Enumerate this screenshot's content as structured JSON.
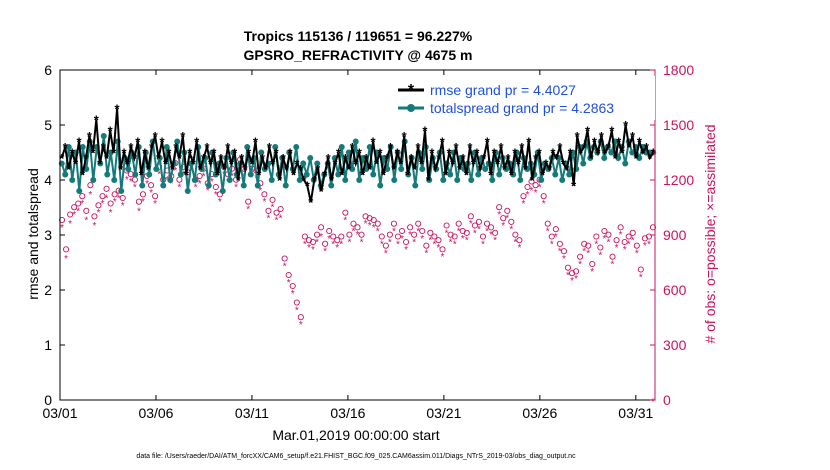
{
  "chart_data": {
    "type": "line",
    "title": [
      "Tropics 115136 / 119651 = 96.227%",
      "GPSRO_REFRACTIVITY @ 4675 m"
    ],
    "xlabel": "Mar.01,2019 00:00:00 start",
    "ylabel": "rmse and totalspread",
    "ylabel_right": "# of obs: o=possible; ×=assimilated",
    "x_ticks": [
      "03/01",
      "03/06",
      "03/11",
      "03/16",
      "03/21",
      "03/26",
      "03/31"
    ],
    "x_tick_days": [
      0,
      5,
      10,
      15,
      20,
      25,
      30
    ],
    "x_range_days": [
      0,
      31
    ],
    "ylim": [
      0,
      6
    ],
    "y_ticks": [
      "0",
      "1",
      "2",
      "3",
      "4",
      "5",
      "6"
    ],
    "ylim_right": [
      0,
      1800
    ],
    "y_ticks_right": [
      "0",
      "300",
      "600",
      "900",
      "1200",
      "1500",
      "1800"
    ],
    "footer": "data file: /Users/raeder/DAI/ATM_forcXX/CAM6_setup/f.e21.FHIST_BGC.f09_025.CAM6assim.011/Diags_NTrS_2019-03/obs_diag_output.nc",
    "series": [
      {
        "name": "rmse grand pr = 4.4027",
        "color": "#000000",
        "marker": "asterisk",
        "values": [
          4.4,
          4.6,
          4.2,
          4.5,
          4.3,
          4.7,
          4.1,
          4.4,
          4.8,
          4.5,
          5.1,
          4.3,
          4.6,
          4.4,
          4.9,
          4.5,
          5.3,
          4.2,
          4.5,
          4.3,
          4.6,
          4.4,
          4.7,
          4.1,
          4.5,
          4.2,
          4.6,
          4.8,
          4.4,
          4.7,
          4.3,
          4.5,
          4.2,
          4.6,
          4.4,
          4.8,
          4.1,
          4.5,
          4.3,
          4.7,
          4.2,
          4.4,
          4.6,
          4.3,
          4.5,
          4.1,
          4.4,
          4.2,
          4.6,
          4.3,
          4.5,
          4.0,
          4.4,
          4.2,
          4.5,
          4.3,
          4.7,
          4.1,
          4.4,
          4.2,
          4.6,
          4.3,
          4.5,
          4.0,
          4.4,
          4.2,
          4.5,
          4.1,
          4.3,
          4.2,
          4.0,
          3.9,
          3.6,
          4.0,
          4.2,
          3.8,
          4.1,
          4.4,
          4.0,
          4.3,
          4.5,
          4.1,
          4.4,
          4.2,
          4.6,
          4.3,
          4.5,
          4.1,
          4.4,
          4.2,
          4.7,
          4.3,
          4.5,
          4.1,
          4.4,
          4.6,
          4.2,
          4.5,
          4.3,
          4.8,
          4.1,
          4.4,
          4.2,
          4.6,
          4.3,
          4.9,
          4.0,
          4.5,
          4.2,
          4.4,
          4.7,
          4.1,
          4.5,
          4.3,
          4.6,
          4.2,
          4.4,
          4.1,
          4.6,
          4.3,
          4.5,
          4.2,
          4.4,
          4.7,
          4.1,
          4.5,
          4.3,
          4.6,
          4.2,
          4.4,
          4.1,
          4.5,
          4.3,
          4.6,
          4.2,
          4.7,
          4.0,
          4.4,
          4.5,
          4.1,
          4.3,
          4.2,
          4.5,
          4.4,
          4.6,
          4.3,
          4.2,
          4.5,
          3.9,
          4.8,
          4.5,
          4.6,
          4.9,
          4.4,
          4.7,
          4.5,
          4.8,
          4.5,
          4.6,
          4.9,
          4.4,
          4.7,
          4.5,
          5.0,
          4.6,
          4.8,
          4.4,
          4.7,
          4.5,
          4.6,
          4.4,
          4.5
        ]
      },
      {
        "name": "totalspread grand pr = 4.2863",
        "color": "#167a7a",
        "marker": "circle",
        "values": [
          4.3,
          4.1,
          4.6,
          4.0,
          4.5,
          3.8,
          4.6,
          4.2,
          4.7,
          4.0,
          4.6,
          4.3,
          4.8,
          4.1,
          4.5,
          4.0,
          4.7,
          3.8,
          4.4,
          4.2,
          4.5,
          4.1,
          4.6,
          3.9,
          4.5,
          4.1,
          4.7,
          4.2,
          4.4,
          3.9,
          4.6,
          4.0,
          4.3,
          4.7,
          4.1,
          4.5,
          3.8,
          4.3,
          4.0,
          4.6,
          4.2,
          4.4,
          3.9,
          4.5,
          4.1,
          4.3,
          3.8,
          4.4,
          4.0,
          4.5,
          4.1,
          4.3,
          3.9,
          4.6,
          4.1,
          4.4,
          3.9,
          4.5,
          4.2,
          4.3,
          4.0,
          4.6,
          4.1,
          4.4,
          3.9,
          4.5,
          4.2,
          4.6,
          4.0,
          4.3,
          4.1,
          4.4,
          4.0,
          4.3,
          3.9,
          4.1,
          4.3,
          3.9,
          4.4,
          4.1,
          4.6,
          4.0,
          4.5,
          4.2,
          4.7,
          4.0,
          4.4,
          4.2,
          4.6,
          4.1,
          4.5,
          3.9,
          4.4,
          4.2,
          4.6,
          4.0,
          4.5,
          4.2,
          4.7,
          4.1,
          4.4,
          3.9,
          4.5,
          4.2,
          4.6,
          4.0,
          4.4,
          4.2,
          4.5,
          4.0,
          4.3,
          4.1,
          4.5,
          4.0,
          4.4,
          4.2,
          4.3,
          4.0,
          4.5,
          4.1,
          4.4,
          4.2,
          4.3,
          4.0,
          4.5,
          4.1,
          4.4,
          4.2,
          4.3,
          4.1,
          4.5,
          4.0,
          4.4,
          4.2,
          4.3,
          4.1,
          4.5,
          4.0,
          4.3,
          4.2,
          4.4,
          4.1,
          4.4,
          4.0,
          4.3,
          4.1,
          4.5,
          4.2,
          4.6,
          4.3,
          4.7,
          4.4,
          4.6,
          4.5,
          4.7,
          4.4,
          4.6,
          4.5,
          4.7,
          4.4,
          4.6,
          4.3,
          4.7,
          4.5,
          4.6,
          4.4,
          4.6,
          4.5,
          4.5,
          4.5
        ]
      },
      {
        "name": "obs possible",
        "axis": "right",
        "color": "#c8135f",
        "marker": "open-circle",
        "values": [
          960,
          800,
          990,
          1030,
          1050,
          1090,
          1010,
          1150,
          980,
          1040,
          1090,
          1130,
          1050,
          1100,
          1120,
          1080,
          1230,
          1210,
          1180,
          1060,
          1100,
          1200,
          1150,
          1090,
          1250,
          1180,
          1230,
          1200,
          1270,
          1180,
          1250,
          1220,
          1290,
          1180,
          1200,
          1240,
          1160,
          1210,
          1140,
          1100,
          1250,
          1210,
          1240,
          1180,
          1290,
          1240,
          1060,
          1240,
          1230,
          1160,
          1100,
          1010,
          1070,
          1000,
          1020,
          750,
          660,
          600,
          510,
          430,
          870,
          850,
          840,
          880,
          920,
          830,
          900,
          870,
          850,
          870,
          1000,
          880,
          940,
          920,
          880,
          980,
          970,
          960,
          940,
          870,
          820,
          880,
          940,
          870,
          900,
          840,
          920,
          880,
          940,
          900,
          820,
          890,
          870,
          850,
          800,
          930,
          880,
          870,
          940,
          900,
          890,
          980,
          930,
          950,
          870,
          940,
          920,
          890,
          1030,
          970,
          1010,
          950,
          880,
          850,
          1090,
          1140,
          1170,
          1150,
          1180,
          1090,
          940,
          870,
          910,
          830,
          790,
          700,
          670,
          680,
          760,
          830,
          820,
          720,
          870,
          810,
          900,
          880,
          760,
          850,
          920,
          840,
          870,
          890,
          820,
          690,
          860,
          870,
          920
        ]
      },
      {
        "name": "obs assimilated",
        "axis": "right",
        "color": "#c8135f",
        "marker": "asterisk",
        "values": [
          950,
          780,
          970,
          1020,
          1040,
          1080,
          990,
          1130,
          960,
          1030,
          1080,
          1110,
          1030,
          1090,
          1110,
          1070,
          1210,
          1200,
          1170,
          1040,
          1090,
          1190,
          1140,
          1080,
          1240,
          1170,
          1210,
          1190,
          1260,
          1170,
          1240,
          1200,
          1280,
          1170,
          1190,
          1230,
          1150,
          1200,
          1130,
          1090,
          1240,
          1200,
          1230,
          1170,
          1280,
          1230,
          1050,
          1230,
          1220,
          1150,
          1090,
          1000,
          1060,
          990,
          1000,
          740,
          650,
          590,
          500,
          420,
          860,
          840,
          830,
          870,
          900,
          820,
          890,
          860,
          840,
          860,
          990,
          870,
          930,
          910,
          870,
          970,
          960,
          950,
          930,
          860,
          810,
          870,
          930,
          860,
          890,
          830,
          910,
          870,
          930,
          890,
          810,
          880,
          860,
          840,
          790,
          920,
          870,
          860,
          930,
          890,
          880,
          970,
          920,
          940,
          860,
          930,
          910,
          880,
          1020,
          960,
          1000,
          940,
          870,
          840,
          1080,
          1130,
          1150,
          1140,
          1170,
          1080,
          930,
          860,
          900,
          820,
          780,
          690,
          660,
          670,
          750,
          820,
          810,
          710,
          860,
          800,
          890,
          870,
          750,
          840,
          910,
          830,
          860,
          880,
          810,
          680,
          850,
          860,
          0
        ]
      }
    ]
  }
}
